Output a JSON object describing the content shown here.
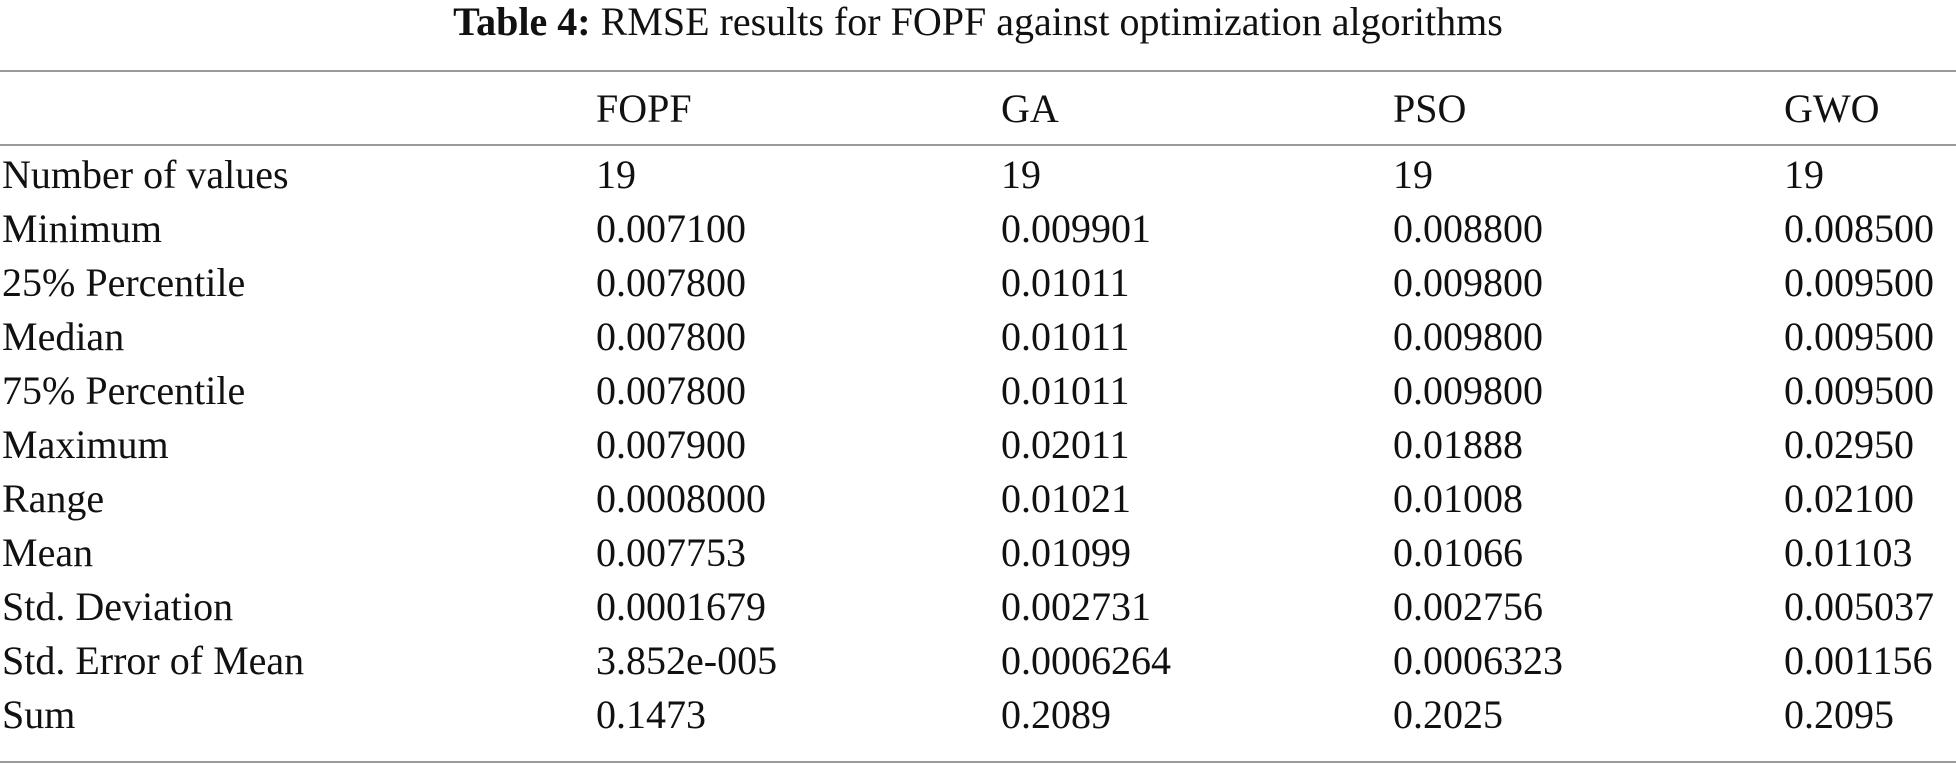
{
  "caption": {
    "label": "Table 4:",
    "text": "RMSE results for FOPF against optimization algorithms"
  },
  "table": {
    "columns": [
      "",
      "FOPF",
      "GA",
      "PSO",
      "GWO"
    ],
    "rows": [
      [
        "Number of values",
        "19",
        "19",
        "19",
        "19"
      ],
      [
        "Minimum",
        "0.007100",
        "0.009901",
        "0.008800",
        "0.008500"
      ],
      [
        "25% Percentile",
        "0.007800",
        "0.01011",
        "0.009800",
        "0.009500"
      ],
      [
        "Median",
        "0.007800",
        "0.01011",
        "0.009800",
        "0.009500"
      ],
      [
        "75% Percentile",
        "0.007800",
        "0.01011",
        "0.009800",
        "0.009500"
      ],
      [
        "Maximum",
        "0.007900",
        "0.02011",
        "0.01888",
        "0.02950"
      ],
      [
        "Range",
        "0.0008000",
        "0.01021",
        "0.01008",
        "0.02100"
      ],
      [
        "Mean",
        "0.007753",
        "0.01099",
        "0.01066",
        "0.01103"
      ],
      [
        "Std. Deviation",
        "0.0001679",
        "0.002731",
        "0.002756",
        "0.005037"
      ],
      [
        "Std. Error of Mean",
        "3.852e-005",
        "0.0006264",
        "0.0006323",
        "0.001156"
      ],
      [
        "Sum",
        "0.1473",
        "0.2089",
        "0.2025",
        "0.2095"
      ]
    ]
  }
}
